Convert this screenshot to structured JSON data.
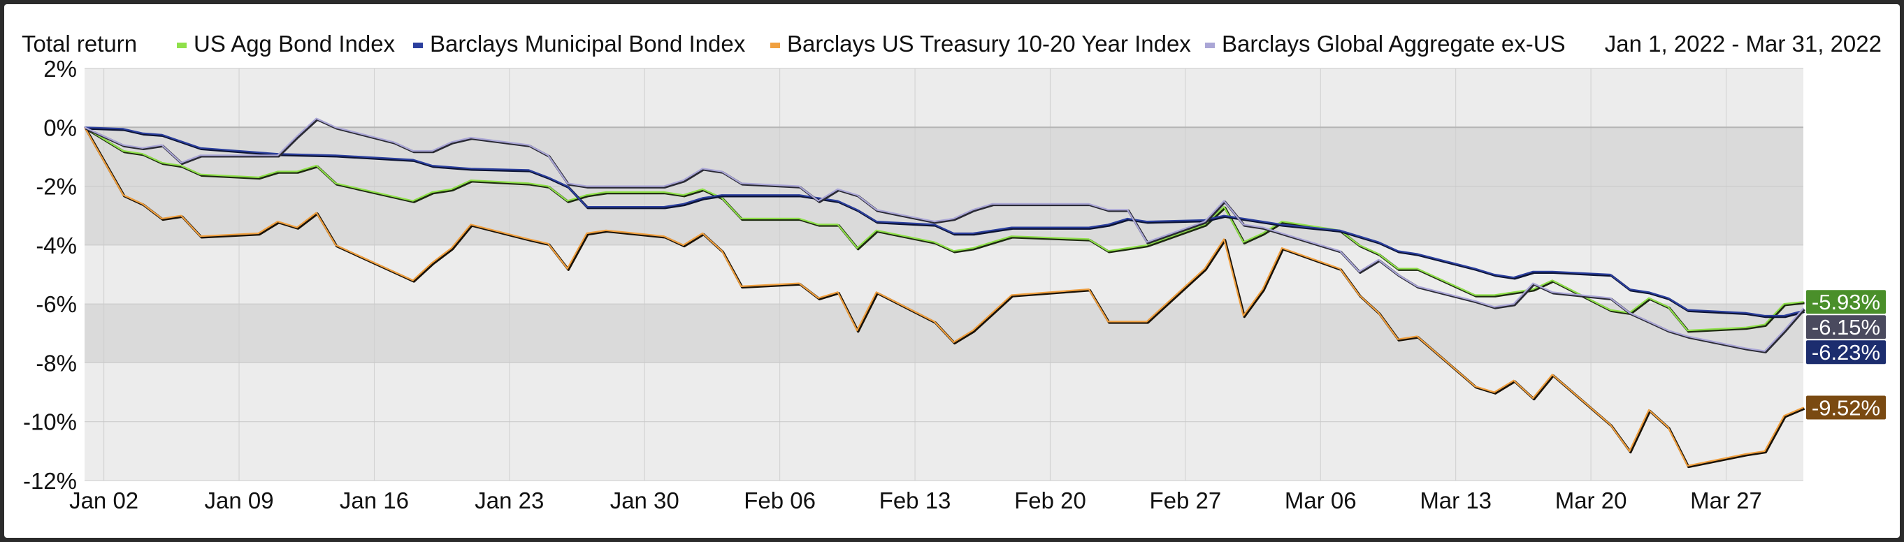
{
  "chart_data": {
    "type": "line",
    "title": "Total return",
    "date_range": "Jan 1, 2022 - Mar 31, 2022",
    "xlim": [
      "2022-01-01",
      "2022-03-31"
    ],
    "ylim": [
      -12,
      2
    ],
    "y_ticks": [
      2,
      0,
      -2,
      -4,
      -6,
      -8,
      -10,
      -12
    ],
    "y_tick_labels": [
      "2%",
      "0%",
      "-2%",
      "-4%",
      "-6%",
      "-8%",
      "-10%",
      "-12%"
    ],
    "x_ticks": [
      "2022-01-02",
      "2022-01-09",
      "2022-01-16",
      "2022-01-23",
      "2022-01-30",
      "2022-02-06",
      "2022-02-13",
      "2022-02-20",
      "2022-02-27",
      "2022-03-06",
      "2022-03-13",
      "2022-03-20",
      "2022-03-27"
    ],
    "x_tick_labels": [
      "Jan 02",
      "Jan 09",
      "Jan 16",
      "Jan 23",
      "Jan 30",
      "Feb 06",
      "Feb 13",
      "Feb 20",
      "Feb 27",
      "Mar 06",
      "Mar 13",
      "Mar 20",
      "Mar 27"
    ],
    "grid": true,
    "legend_position": "top",
    "series": [
      {
        "name": "US Agg Bond Index",
        "color": "#8fe04a",
        "end_label": "-5.93%",
        "end_label_bg": "#4a8f2a",
        "points": [
          [
            "2022-01-01",
            0
          ],
          [
            "2022-01-03",
            -0.8
          ],
          [
            "2022-01-04",
            -0.9
          ],
          [
            "2022-01-05",
            -1.2
          ],
          [
            "2022-01-06",
            -1.3
          ],
          [
            "2022-01-07",
            -1.6
          ],
          [
            "2022-01-10",
            -1.7
          ],
          [
            "2022-01-11",
            -1.5
          ],
          [
            "2022-01-12",
            -1.5
          ],
          [
            "2022-01-13",
            -1.3
          ],
          [
            "2022-01-14",
            -1.9
          ],
          [
            "2022-01-18",
            -2.5
          ],
          [
            "2022-01-19",
            -2.2
          ],
          [
            "2022-01-20",
            -2.1
          ],
          [
            "2022-01-21",
            -1.8
          ],
          [
            "2022-01-24",
            -1.9
          ],
          [
            "2022-01-25",
            -2.0
          ],
          [
            "2022-01-26",
            -2.5
          ],
          [
            "2022-01-27",
            -2.3
          ],
          [
            "2022-01-28",
            -2.2
          ],
          [
            "2022-01-31",
            -2.2
          ],
          [
            "2022-02-01",
            -2.3
          ],
          [
            "2022-02-02",
            -2.1
          ],
          [
            "2022-02-03",
            -2.4
          ],
          [
            "2022-02-04",
            -3.1
          ],
          [
            "2022-02-07",
            -3.1
          ],
          [
            "2022-02-08",
            -3.3
          ],
          [
            "2022-02-09",
            -3.3
          ],
          [
            "2022-02-10",
            -4.1
          ],
          [
            "2022-02-11",
            -3.5
          ],
          [
            "2022-02-14",
            -3.9
          ],
          [
            "2022-02-15",
            -4.2
          ],
          [
            "2022-02-16",
            -4.1
          ],
          [
            "2022-02-17",
            -3.9
          ],
          [
            "2022-02-18",
            -3.7
          ],
          [
            "2022-02-22",
            -3.8
          ],
          [
            "2022-02-23",
            -4.2
          ],
          [
            "2022-02-24",
            -4.1
          ],
          [
            "2022-02-25",
            -4.0
          ],
          [
            "2022-02-28",
            -3.3
          ],
          [
            "2022-03-01",
            -2.7
          ],
          [
            "2022-03-02",
            -3.9
          ],
          [
            "2022-03-03",
            -3.6
          ],
          [
            "2022-03-04",
            -3.2
          ],
          [
            "2022-03-07",
            -3.5
          ],
          [
            "2022-03-08",
            -4.0
          ],
          [
            "2022-03-09",
            -4.3
          ],
          [
            "2022-03-10",
            -4.8
          ],
          [
            "2022-03-11",
            -4.8
          ],
          [
            "2022-03-14",
            -5.7
          ],
          [
            "2022-03-15",
            -5.7
          ],
          [
            "2022-03-16",
            -5.6
          ],
          [
            "2022-03-17",
            -5.5
          ],
          [
            "2022-03-18",
            -5.2
          ],
          [
            "2022-03-21",
            -6.2
          ],
          [
            "2022-03-22",
            -6.3
          ],
          [
            "2022-03-23",
            -5.8
          ],
          [
            "2022-03-24",
            -6.1
          ],
          [
            "2022-03-25",
            -6.9
          ],
          [
            "2022-03-28",
            -6.8
          ],
          [
            "2022-03-29",
            -6.7
          ],
          [
            "2022-03-30",
            -6.0
          ],
          [
            "2022-03-31",
            -5.93
          ]
        ]
      },
      {
        "name": "Barclays Municipal Bond Index",
        "color": "#2b3f9e",
        "end_label": "-6.23%",
        "end_label_bg": "#1c2d6e",
        "points": [
          [
            "2022-01-01",
            0
          ],
          [
            "2022-01-03",
            -0.05
          ],
          [
            "2022-01-04",
            -0.2
          ],
          [
            "2022-01-05",
            -0.25
          ],
          [
            "2022-01-07",
            -0.7
          ],
          [
            "2022-01-10",
            -0.85
          ],
          [
            "2022-01-11",
            -0.9
          ],
          [
            "2022-01-14",
            -0.95
          ],
          [
            "2022-01-18",
            -1.1
          ],
          [
            "2022-01-19",
            -1.3
          ],
          [
            "2022-01-20",
            -1.35
          ],
          [
            "2022-01-21",
            -1.4
          ],
          [
            "2022-01-24",
            -1.45
          ],
          [
            "2022-01-25",
            -1.7
          ],
          [
            "2022-01-26",
            -2.0
          ],
          [
            "2022-01-27",
            -2.7
          ],
          [
            "2022-01-28",
            -2.7
          ],
          [
            "2022-01-31",
            -2.7
          ],
          [
            "2022-02-01",
            -2.6
          ],
          [
            "2022-02-02",
            -2.4
          ],
          [
            "2022-02-03",
            -2.3
          ],
          [
            "2022-02-07",
            -2.3
          ],
          [
            "2022-02-08",
            -2.4
          ],
          [
            "2022-02-09",
            -2.5
          ],
          [
            "2022-02-10",
            -2.8
          ],
          [
            "2022-02-11",
            -3.2
          ],
          [
            "2022-02-14",
            -3.3
          ],
          [
            "2022-02-15",
            -3.6
          ],
          [
            "2022-02-16",
            -3.6
          ],
          [
            "2022-02-17",
            -3.5
          ],
          [
            "2022-02-18",
            -3.4
          ],
          [
            "2022-02-22",
            -3.4
          ],
          [
            "2022-02-23",
            -3.3
          ],
          [
            "2022-02-24",
            -3.1
          ],
          [
            "2022-02-25",
            -3.2
          ],
          [
            "2022-02-28",
            -3.15
          ],
          [
            "2022-03-01",
            -3.0
          ],
          [
            "2022-03-02",
            -3.1
          ],
          [
            "2022-03-03",
            -3.2
          ],
          [
            "2022-03-04",
            -3.3
          ],
          [
            "2022-03-07",
            -3.5
          ],
          [
            "2022-03-08",
            -3.7
          ],
          [
            "2022-03-09",
            -3.9
          ],
          [
            "2022-03-10",
            -4.2
          ],
          [
            "2022-03-11",
            -4.3
          ],
          [
            "2022-03-14",
            -4.8
          ],
          [
            "2022-03-15",
            -5.0
          ],
          [
            "2022-03-16",
            -5.1
          ],
          [
            "2022-03-17",
            -4.9
          ],
          [
            "2022-03-18",
            -4.9
          ],
          [
            "2022-03-21",
            -5.0
          ],
          [
            "2022-03-22",
            -5.5
          ],
          [
            "2022-03-23",
            -5.6
          ],
          [
            "2022-03-24",
            -5.8
          ],
          [
            "2022-03-25",
            -6.2
          ],
          [
            "2022-03-28",
            -6.3
          ],
          [
            "2022-03-29",
            -6.4
          ],
          [
            "2022-03-30",
            -6.4
          ],
          [
            "2022-03-31",
            -6.23
          ]
        ]
      },
      {
        "name": "Barclays US Treasury 10-20 Year Index",
        "color": "#f0a040",
        "end_label": "-9.52%",
        "end_label_bg": "#7a4a12",
        "points": [
          [
            "2022-01-01",
            0
          ],
          [
            "2022-01-03",
            -2.3
          ],
          [
            "2022-01-04",
            -2.6
          ],
          [
            "2022-01-05",
            -3.1
          ],
          [
            "2022-01-06",
            -3.0
          ],
          [
            "2022-01-07",
            -3.7
          ],
          [
            "2022-01-10",
            -3.6
          ],
          [
            "2022-01-11",
            -3.2
          ],
          [
            "2022-01-12",
            -3.4
          ],
          [
            "2022-01-13",
            -2.9
          ],
          [
            "2022-01-14",
            -4.0
          ],
          [
            "2022-01-18",
            -5.2
          ],
          [
            "2022-01-19",
            -4.6
          ],
          [
            "2022-01-20",
            -4.1
          ],
          [
            "2022-01-21",
            -3.3
          ],
          [
            "2022-01-24",
            -3.8
          ],
          [
            "2022-01-25",
            -3.95
          ],
          [
            "2022-01-26",
            -4.8
          ],
          [
            "2022-01-27",
            -3.6
          ],
          [
            "2022-01-28",
            -3.5
          ],
          [
            "2022-01-31",
            -3.7
          ],
          [
            "2022-02-01",
            -4.0
          ],
          [
            "2022-02-02",
            -3.6
          ],
          [
            "2022-02-03",
            -4.2
          ],
          [
            "2022-02-04",
            -5.4
          ],
          [
            "2022-02-07",
            -5.3
          ],
          [
            "2022-02-08",
            -5.8
          ],
          [
            "2022-02-09",
            -5.6
          ],
          [
            "2022-02-10",
            -6.9
          ],
          [
            "2022-02-11",
            -5.6
          ],
          [
            "2022-02-14",
            -6.6
          ],
          [
            "2022-02-15",
            -7.3
          ],
          [
            "2022-02-16",
            -6.9
          ],
          [
            "2022-02-17",
            -6.3
          ],
          [
            "2022-02-18",
            -5.7
          ],
          [
            "2022-02-22",
            -5.5
          ],
          [
            "2022-02-23",
            -6.6
          ],
          [
            "2022-02-25",
            -6.6
          ],
          [
            "2022-02-28",
            -4.8
          ],
          [
            "2022-03-01",
            -3.8
          ],
          [
            "2022-03-02",
            -6.4
          ],
          [
            "2022-03-03",
            -5.5
          ],
          [
            "2022-03-04",
            -4.1
          ],
          [
            "2022-03-07",
            -4.8
          ],
          [
            "2022-03-08",
            -5.7
          ],
          [
            "2022-03-09",
            -6.3
          ],
          [
            "2022-03-10",
            -7.2
          ],
          [
            "2022-03-11",
            -7.1
          ],
          [
            "2022-03-14",
            -8.8
          ],
          [
            "2022-03-15",
            -9.0
          ],
          [
            "2022-03-16",
            -8.6
          ],
          [
            "2022-03-17",
            -9.2
          ],
          [
            "2022-03-18",
            -8.4
          ],
          [
            "2022-03-21",
            -10.1
          ],
          [
            "2022-03-22",
            -11.0
          ],
          [
            "2022-03-23",
            -9.6
          ],
          [
            "2022-03-24",
            -10.2
          ],
          [
            "2022-03-25",
            -11.5
          ],
          [
            "2022-03-28",
            -11.1
          ],
          [
            "2022-03-29",
            -11.0
          ],
          [
            "2022-03-30",
            -9.8
          ],
          [
            "2022-03-31",
            -9.52
          ]
        ]
      },
      {
        "name": "Barclays Global Aggregate ex-US",
        "color": "#aaa6d6",
        "end_label": "-6.15%",
        "end_label_bg": "#4a4a5e",
        "points": [
          [
            "2022-01-01",
            0
          ],
          [
            "2022-01-03",
            -0.6
          ],
          [
            "2022-01-04",
            -0.7
          ],
          [
            "2022-01-05",
            -0.6
          ],
          [
            "2022-01-06",
            -1.2
          ],
          [
            "2022-01-07",
            -0.95
          ],
          [
            "2022-01-11",
            -0.95
          ],
          [
            "2022-01-12",
            -0.3
          ],
          [
            "2022-01-13",
            0.3
          ],
          [
            "2022-01-14",
            0.0
          ],
          [
            "2022-01-17",
            -0.5
          ],
          [
            "2022-01-18",
            -0.8
          ],
          [
            "2022-01-19",
            -0.8
          ],
          [
            "2022-01-20",
            -0.5
          ],
          [
            "2022-01-21",
            -0.35
          ],
          [
            "2022-01-24",
            -0.6
          ],
          [
            "2022-01-25",
            -0.95
          ],
          [
            "2022-01-26",
            -1.9
          ],
          [
            "2022-01-27",
            -2.0
          ],
          [
            "2022-01-28",
            -2.0
          ],
          [
            "2022-01-31",
            -2.0
          ],
          [
            "2022-02-01",
            -1.8
          ],
          [
            "2022-02-02",
            -1.4
          ],
          [
            "2022-02-03",
            -1.5
          ],
          [
            "2022-02-04",
            -1.9
          ],
          [
            "2022-02-07",
            -2.0
          ],
          [
            "2022-02-08",
            -2.5
          ],
          [
            "2022-02-09",
            -2.1
          ],
          [
            "2022-02-10",
            -2.3
          ],
          [
            "2022-02-11",
            -2.8
          ],
          [
            "2022-02-14",
            -3.2
          ],
          [
            "2022-02-15",
            -3.1
          ],
          [
            "2022-02-16",
            -2.8
          ],
          [
            "2022-02-17",
            -2.6
          ],
          [
            "2022-02-18",
            -2.6
          ],
          [
            "2022-02-22",
            -2.6
          ],
          [
            "2022-02-23",
            -2.8
          ],
          [
            "2022-02-24",
            -2.8
          ],
          [
            "2022-02-25",
            -3.9
          ],
          [
            "2022-02-28",
            -3.2
          ],
          [
            "2022-03-01",
            -2.5
          ],
          [
            "2022-03-02",
            -3.3
          ],
          [
            "2022-03-03",
            -3.4
          ],
          [
            "2022-03-04",
            -3.6
          ],
          [
            "2022-03-07",
            -4.2
          ],
          [
            "2022-03-08",
            -4.9
          ],
          [
            "2022-03-09",
            -4.5
          ],
          [
            "2022-03-10",
            -5.0
          ],
          [
            "2022-03-11",
            -5.4
          ],
          [
            "2022-03-14",
            -5.9
          ],
          [
            "2022-03-15",
            -6.1
          ],
          [
            "2022-03-16",
            -6.0
          ],
          [
            "2022-03-17",
            -5.3
          ],
          [
            "2022-03-18",
            -5.6
          ],
          [
            "2022-03-21",
            -5.8
          ],
          [
            "2022-03-22",
            -6.3
          ],
          [
            "2022-03-23",
            -6.6
          ],
          [
            "2022-03-24",
            -6.9
          ],
          [
            "2022-03-25",
            -7.1
          ],
          [
            "2022-03-28",
            -7.5
          ],
          [
            "2022-03-29",
            -7.6
          ],
          [
            "2022-03-30",
            -6.9
          ],
          [
            "2022-03-31",
            -6.15
          ]
        ]
      }
    ]
  }
}
